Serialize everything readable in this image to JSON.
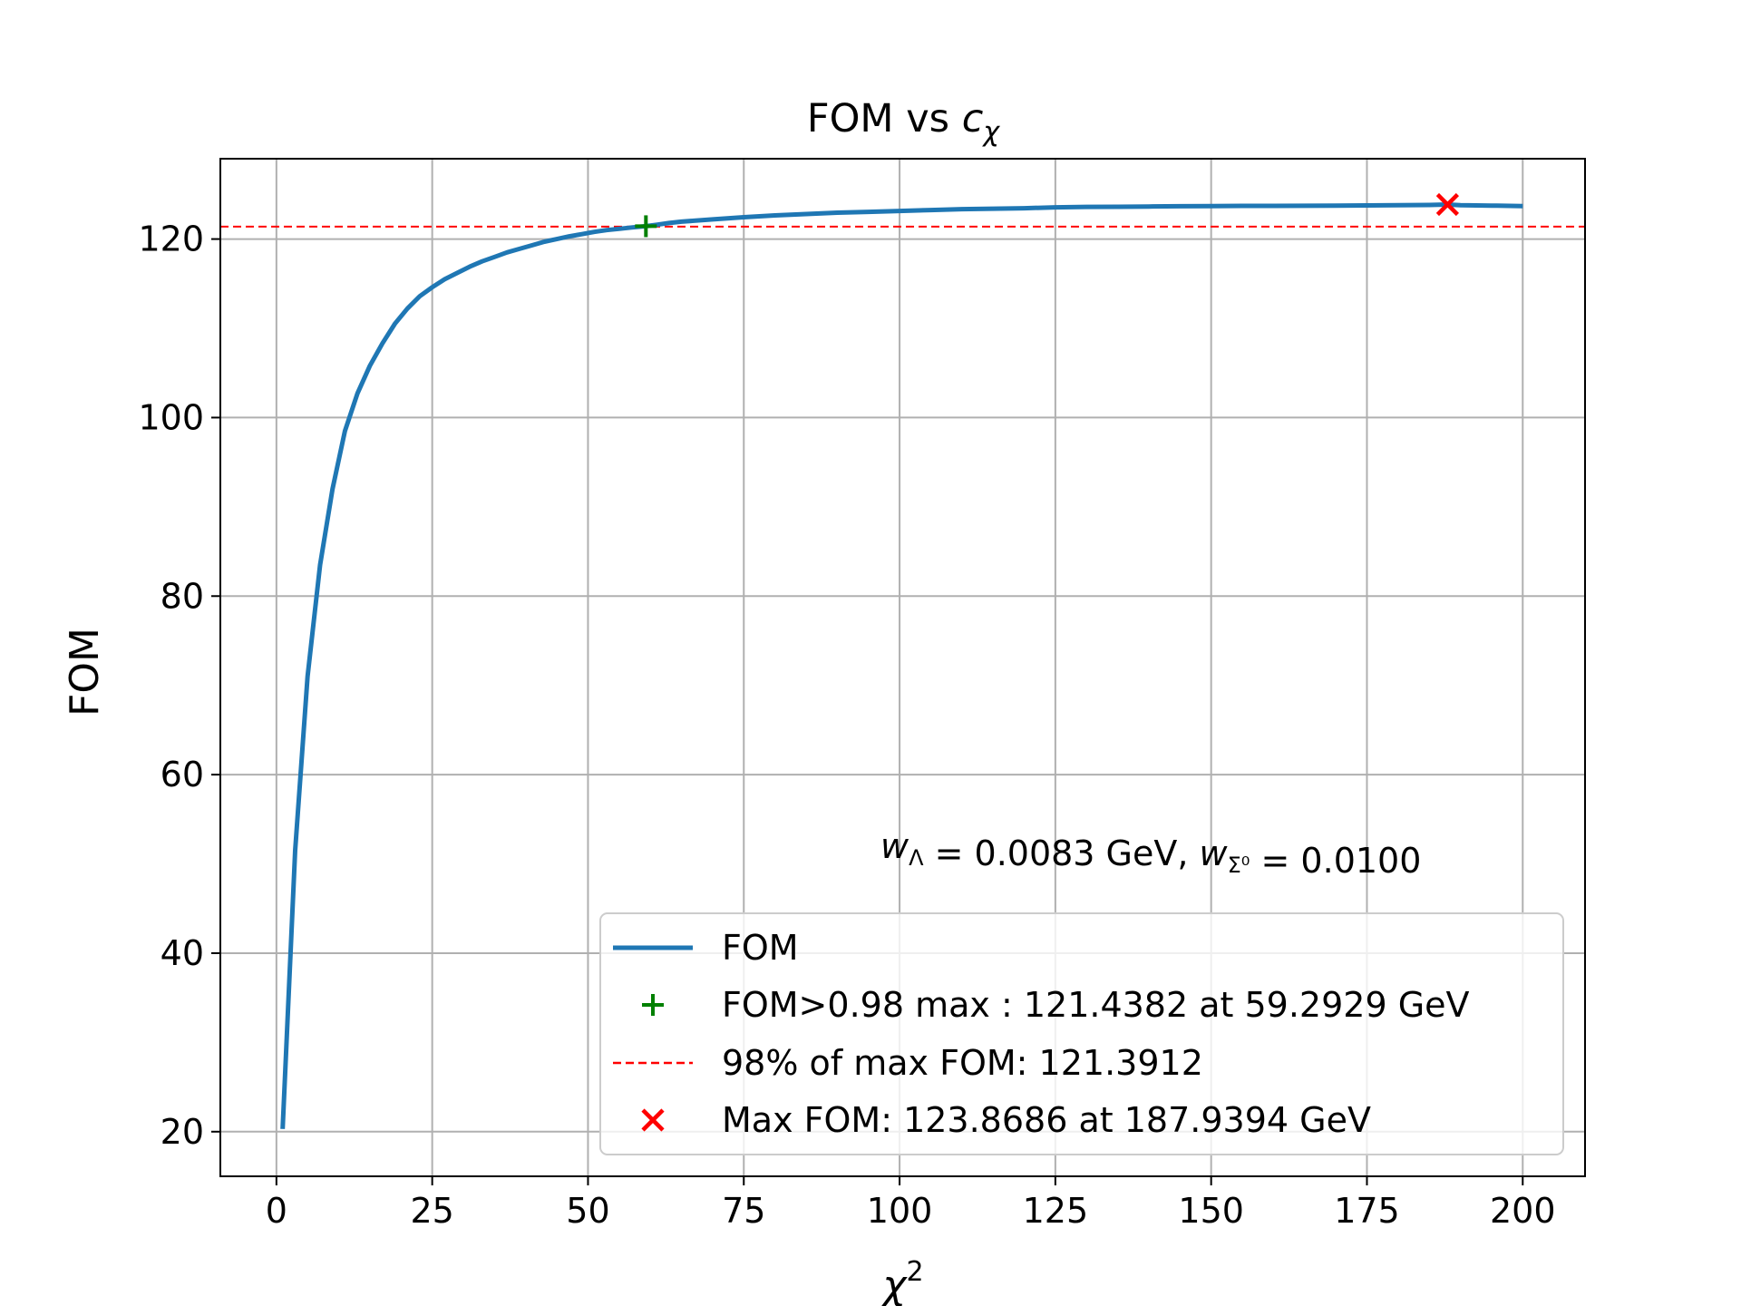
{
  "chart_data": {
    "type": "line",
    "title": "FOM vs ",
    "title_math": "c",
    "title_math_sub": "χ",
    "xlabel": "χ",
    "xlabel_sup": "2",
    "ylabel": "FOM",
    "xlim": [
      -9,
      210
    ],
    "ylim": [
      15,
      129
    ],
    "xticks": [
      0,
      25,
      50,
      75,
      100,
      125,
      150,
      175,
      200
    ],
    "xtick_labels": [
      "0",
      "25",
      "50",
      "75",
      "100",
      "125",
      "150",
      "175",
      "200"
    ],
    "yticks": [
      20,
      40,
      60,
      80,
      100,
      120
    ],
    "ytick_labels": [
      "20",
      "40",
      "60",
      "80",
      "100",
      "120"
    ],
    "grid": true,
    "legend_position": "lower-right",
    "series": [
      {
        "name": "FOM",
        "color": "#1f77b4",
        "x": [
          1,
          3,
          5,
          7,
          9,
          11,
          13,
          15,
          17,
          19,
          21,
          23,
          25,
          27,
          29,
          31,
          33,
          35,
          37,
          39,
          41,
          43,
          45,
          47,
          49,
          51,
          53,
          55,
          57,
          59.29,
          61,
          63,
          65,
          67,
          70,
          75,
          80,
          85,
          90,
          95,
          100,
          105,
          110,
          115,
          120,
          125,
          130,
          135,
          140,
          145,
          150,
          155,
          160,
          165,
          170,
          175,
          180,
          185,
          187.94,
          190,
          195,
          200
        ],
        "y": [
          20.3,
          51.5,
          71,
          83.5,
          92,
          98.5,
          102.7,
          105.8,
          108.3,
          110.5,
          112.2,
          113.6,
          114.6,
          115.5,
          116.2,
          116.9,
          117.5,
          118,
          118.5,
          118.9,
          119.3,
          119.7,
          120,
          120.3,
          120.55,
          120.8,
          121,
          121.15,
          121.3,
          121.44,
          121.6,
          121.8,
          121.95,
          122.05,
          122.2,
          122.45,
          122.65,
          122.8,
          122.95,
          123.05,
          123.15,
          123.25,
          123.35,
          123.4,
          123.45,
          123.55,
          123.6,
          123.62,
          123.65,
          123.68,
          123.7,
          123.72,
          123.72,
          123.73,
          123.75,
          123.77,
          123.8,
          123.82,
          123.87,
          123.8,
          123.75,
          123.7
        ]
      }
    ],
    "threshold_point": {
      "x": 59.2929,
      "y": 121.4382,
      "color": "#008000",
      "label": "FOM>0.98 max : 121.4382 at 59.2929 GeV"
    },
    "threshold_line": {
      "y": 121.3912,
      "color": "#ff0000",
      "label": "98% of max FOM: 121.3912"
    },
    "max_point": {
      "x": 187.9394,
      "y": 123.8686,
      "color": "#ff0000",
      "label": "Max FOM: 123.8686 at 187.9394 GeV"
    },
    "annotation": {
      "parts": [
        {
          "text": "w",
          "italic": true
        },
        {
          "text": "Λ",
          "sub": true
        },
        {
          "text": " = 0.0083 GeV, "
        },
        {
          "text": "w",
          "italic": true
        },
        {
          "text": "Σ⁰",
          "sub": true
        },
        {
          "text": " = 0.0100"
        }
      ]
    }
  }
}
